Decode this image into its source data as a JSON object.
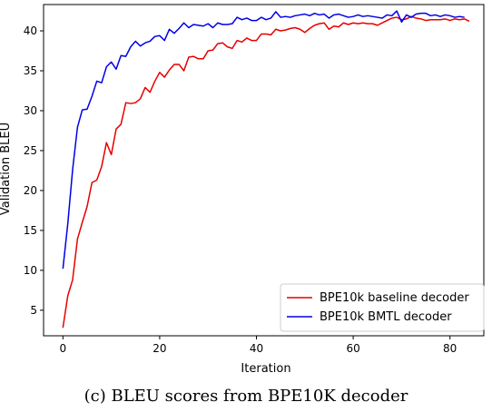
{
  "caption": "(c) BLEU scores from BPE10K decoder",
  "chart_data": {
    "type": "line",
    "title": "",
    "xlabel": "Iteration",
    "ylabel": "Validation BLEU",
    "xlim": [
      -4,
      87
    ],
    "ylim": [
      1.8,
      43.3
    ],
    "xticks": [
      0,
      20,
      40,
      60,
      80
    ],
    "yticks": [
      5,
      10,
      15,
      20,
      25,
      30,
      35,
      40
    ],
    "grid": false,
    "legend": "bottom-right",
    "series": [
      {
        "name": "BPE10k baseline decoder",
        "color": "#e60000",
        "values": [
          2.8,
          6.8,
          8.8,
          13.9,
          16.0,
          18.0,
          21.0,
          21.3,
          23.0,
          26.0,
          24.5,
          27.7,
          28.3,
          31.0,
          30.9,
          31.0,
          31.5,
          32.9,
          32.3,
          33.7,
          34.8,
          34.2,
          35.1,
          35.8,
          35.8,
          35.0,
          36.7,
          36.8,
          36.5,
          36.5,
          37.5,
          37.6,
          38.4,
          38.5,
          38.0,
          37.8,
          38.8,
          38.6,
          39.1,
          38.8,
          38.8,
          39.6,
          39.6,
          39.5,
          40.2,
          40.0,
          40.1,
          40.3,
          40.4,
          40.2,
          39.8,
          40.3,
          40.7,
          40.9,
          41.0,
          40.2,
          40.6,
          40.5,
          41.0,
          40.8,
          41.0,
          40.9,
          41.0,
          40.9,
          40.9,
          40.7,
          41.0,
          41.3,
          41.6,
          41.7,
          41.4,
          41.5,
          41.8,
          41.6,
          41.5,
          41.3,
          41.4,
          41.4,
          41.4,
          41.5,
          41.3,
          41.5,
          41.4,
          41.5,
          41.2
        ]
      },
      {
        "name": "BPE10k BMTL decoder",
        "color": "#0000e6",
        "values": [
          10.2,
          15.8,
          22.6,
          27.9,
          30.1,
          30.2,
          31.8,
          33.7,
          33.5,
          35.5,
          36.1,
          35.2,
          36.9,
          36.8,
          38.0,
          38.7,
          38.1,
          38.5,
          38.7,
          39.3,
          39.4,
          38.8,
          40.2,
          39.7,
          40.3,
          41.0,
          40.4,
          40.8,
          40.7,
          40.6,
          40.9,
          40.4,
          41.0,
          40.8,
          40.8,
          40.9,
          41.7,
          41.4,
          41.6,
          41.3,
          41.3,
          41.7,
          41.4,
          41.6,
          42.4,
          41.7,
          41.8,
          41.7,
          41.9,
          42.0,
          42.1,
          41.9,
          42.2,
          42.0,
          42.1,
          41.6,
          42.0,
          42.1,
          41.9,
          41.7,
          41.8,
          42.0,
          41.8,
          41.9,
          41.8,
          41.7,
          41.6,
          42.0,
          41.9,
          42.5,
          41.1,
          42.0,
          41.7,
          42.1,
          42.2,
          42.2,
          41.9,
          42.0,
          41.8,
          42.0,
          41.9,
          41.7,
          41.8,
          41.7
        ]
      }
    ]
  }
}
